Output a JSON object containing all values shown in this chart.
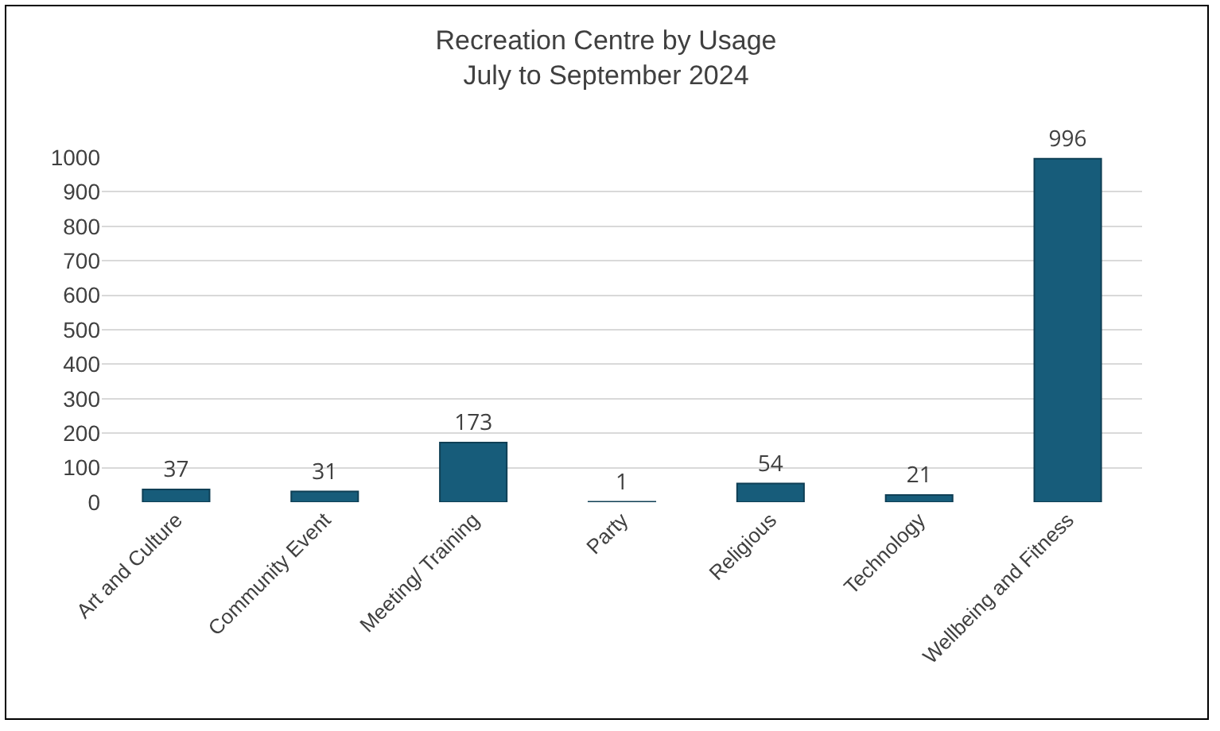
{
  "chart_data": {
    "type": "bar",
    "title": "Recreation Centre by Usage",
    "subtitle": "July to September 2024",
    "categories": [
      "Art and Culture",
      "Community Event",
      "Meeting/ Training",
      "Party",
      "Religious",
      "Technology",
      "Wellbeing and Fitness"
    ],
    "values": [
      37,
      31,
      173,
      1,
      54,
      21,
      996
    ],
    "color": "#175c7a",
    "ylim": [
      0,
      1000
    ],
    "yticks": [
      0,
      100,
      200,
      300,
      400,
      500,
      600,
      700,
      800,
      900,
      1000
    ],
    "grid": "y",
    "data_labels": true
  }
}
